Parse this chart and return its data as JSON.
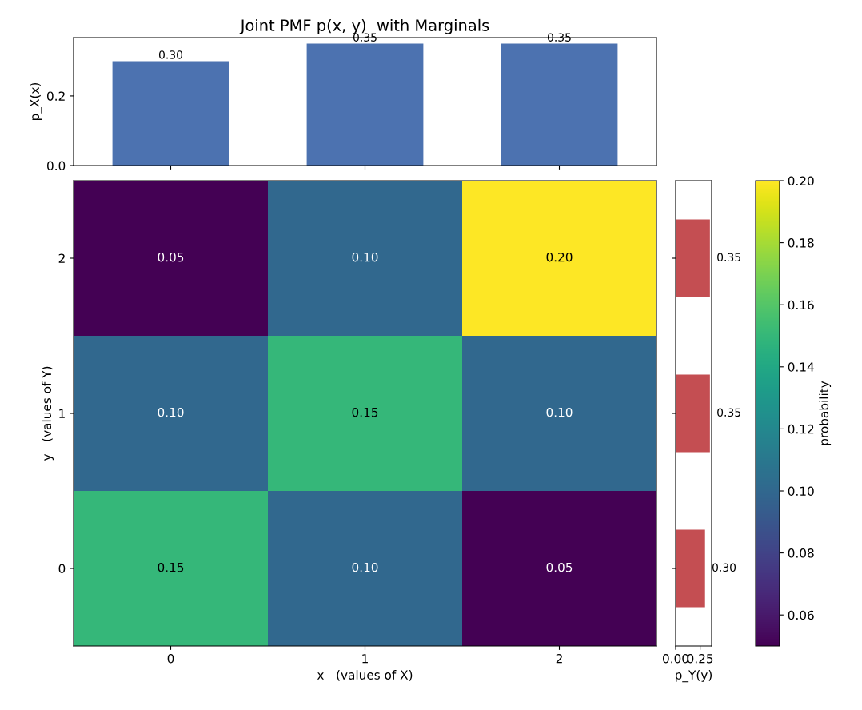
{
  "chart_data": [
    {
      "type": "bar",
      "title": "Joint PMF p(x, y)  with Marginals",
      "ylabel": "p_X(x)",
      "categories": [
        "0",
        "1",
        "2"
      ],
      "values": [
        0.3,
        0.35,
        0.35
      ],
      "value_labels": [
        "0.30",
        "0.35",
        "0.35"
      ],
      "color": "#4c72b0",
      "ylim": [
        0,
        0.3675
      ],
      "yticks": [
        {
          "value": 0,
          "label": "0.0"
        },
        {
          "value": 0.2,
          "label": "0.2"
        }
      ],
      "tick_labels": "y"
    },
    {
      "type": "heatmap",
      "xlabel": "x   (values of X)",
      "ylabel": "y   (values of Y)",
      "clabel": "probability",
      "categories": [
        "0",
        "1",
        "2"
      ],
      "y_categories": [
        "2",
        "1",
        "0"
      ],
      "cells": [
        [
          0.05,
          0.1,
          0.2
        ],
        [
          0.1,
          0.15,
          0.1
        ],
        [
          0.15,
          0.1,
          0.05
        ]
      ],
      "cell_labels": [
        [
          "0.05",
          "0.10",
          "0.20"
        ],
        [
          "0.10",
          "0.15",
          "0.10"
        ],
        [
          "0.15",
          "0.10",
          "0.05"
        ]
      ],
      "clim": [
        0.05,
        0.2
      ],
      "cticks": [
        {
          "value": 0.06,
          "label": "0.06"
        },
        {
          "value": 0.08,
          "label": "0.08"
        },
        {
          "value": 0.1,
          "label": "0.10"
        },
        {
          "value": 0.12,
          "label": "0.12"
        },
        {
          "value": 0.14,
          "label": "0.14"
        },
        {
          "value": 0.16,
          "label": "0.16"
        },
        {
          "value": 0.18,
          "label": "0.18"
        },
        {
          "value": 0.2,
          "label": "0.20"
        }
      ]
    },
    {
      "type": "bar",
      "orientation": "horizontal",
      "xlabel": "p_Y(y)",
      "categories": [
        "2",
        "1",
        "0"
      ],
      "values": [
        0.35,
        0.35,
        0.3
      ],
      "value_labels": [
        "0.35",
        "0.35",
        "0.30"
      ],
      "color": "#c44e52",
      "xlim": [
        0,
        0.3675
      ],
      "xticks": [
        {
          "value": 0,
          "label": "0.00"
        },
        {
          "value": 0.25,
          "label": "0.25"
        }
      ],
      "tick_labels": "x"
    }
  ]
}
